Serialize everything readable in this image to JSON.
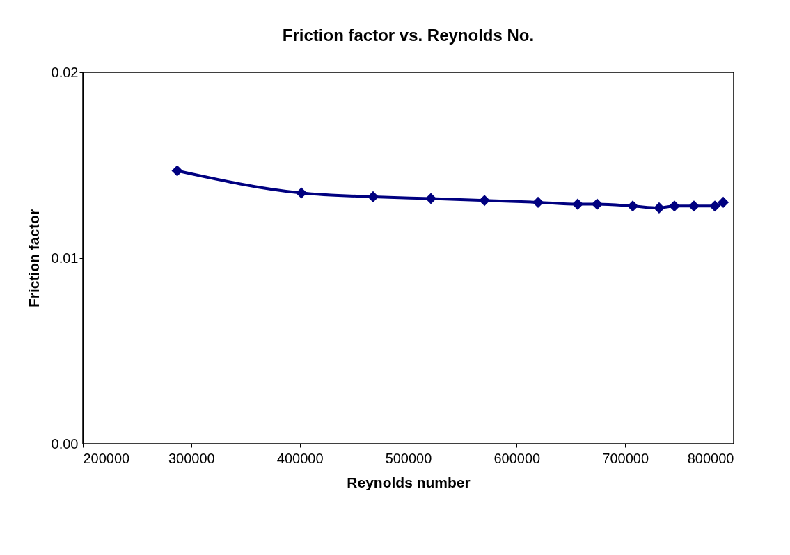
{
  "chart_data": {
    "type": "line",
    "title": "Friction factor vs. Reynolds No.",
    "xlabel": "Reynolds number",
    "ylabel": "Friction factor",
    "x": [
      287000,
      401500,
      467600,
      520900,
      570300,
      619700,
      656200,
      674200,
      707000,
      731300,
      745400,
      763400,
      782700,
      790400
    ],
    "series": [
      {
        "color": "#000080",
        "values": [
          0.0147,
          0.0135,
          0.0133,
          0.0132,
          0.0131,
          0.013,
          0.0129,
          0.0129,
          0.0128,
          0.0127,
          0.0128,
          0.0128,
          0.0128,
          0.013
        ]
      }
    ],
    "xlim": [
      200000,
      800000
    ],
    "xticks": [
      200000,
      300000,
      400000,
      500000,
      600000,
      700000,
      800000
    ],
    "ylim": [
      0,
      0.02
    ],
    "yticks": [
      {
        "value": 0,
        "label": "0.00"
      },
      0.01,
      0.02
    ],
    "grid": false,
    "marker": "diamond",
    "line_style": "solid"
  }
}
